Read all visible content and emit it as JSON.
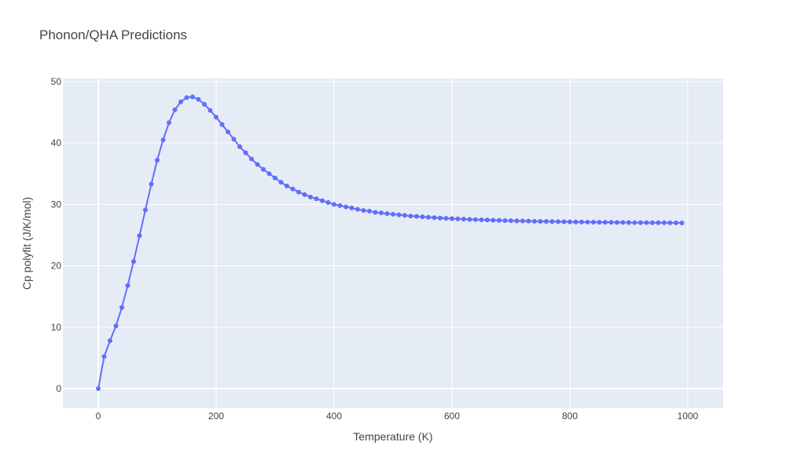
{
  "chart_data": {
    "type": "line",
    "title": "Phonon/QHA Predictions",
    "xlabel": "Temperature (K)",
    "ylabel": "Cp polyfit (J/K/mol)",
    "xlim": [
      -60,
      1060
    ],
    "ylim": [
      -3.2,
      50.5
    ],
    "x_ticks": [
      0,
      200,
      400,
      600,
      800,
      1000
    ],
    "x_tick_labels": [
      "0",
      "200",
      "400",
      "600",
      "800",
      "1000"
    ],
    "y_ticks": [
      0,
      10,
      20,
      30,
      40,
      50
    ],
    "y_tick_labels": [
      "0",
      "10",
      "20",
      "30",
      "40",
      "50"
    ],
    "grid": true,
    "legend": "none",
    "marker": "circle",
    "colors": {
      "plot_bg": "#e5ecf6",
      "grid": "#ffffff",
      "series": "#636efa",
      "text": "#444444"
    },
    "series": [
      {
        "x": [
          0,
          10,
          20,
          30,
          40,
          50,
          60,
          70,
          80,
          90,
          100,
          110,
          120,
          130,
          140,
          150,
          160,
          170,
          180,
          190,
          200,
          210,
          220,
          230,
          240,
          250,
          260,
          270,
          280,
          290,
          300,
          310,
          320,
          330,
          340,
          350,
          360,
          370,
          380,
          390,
          400,
          410,
          420,
          430,
          440,
          450,
          460,
          470,
          480,
          490,
          500,
          510,
          520,
          530,
          540,
          550,
          560,
          570,
          580,
          590,
          600,
          610,
          620,
          630,
          640,
          650,
          660,
          670,
          680,
          690,
          700,
          710,
          720,
          730,
          740,
          750,
          760,
          770,
          780,
          790,
          800,
          810,
          820,
          830,
          840,
          850,
          860,
          870,
          880,
          890,
          900,
          910,
          920,
          930,
          940,
          950,
          960,
          970,
          980,
          990
        ],
        "values": [
          0,
          5.2,
          7.8,
          10.2,
          13.2,
          16.8,
          20.7,
          24.9,
          29.1,
          33.3,
          37.2,
          40.5,
          43.3,
          45.4,
          46.7,
          47.4,
          47.5,
          47.1,
          46.3,
          45.3,
          44.2,
          43.0,
          41.8,
          40.6,
          39.4,
          38.4,
          37.4,
          36.5,
          35.7,
          35.0,
          34.3,
          33.6,
          33.0,
          32.5,
          32.0,
          31.6,
          31.2,
          30.9,
          30.6,
          30.3,
          30.0,
          29.8,
          29.6,
          29.4,
          29.2,
          29.0,
          28.9,
          28.7,
          28.6,
          28.5,
          28.4,
          28.3,
          28.2,
          28.1,
          28.05,
          27.98,
          27.9,
          27.84,
          27.78,
          27.73,
          27.68,
          27.63,
          27.59,
          27.55,
          27.51,
          27.48,
          27.45,
          27.42,
          27.39,
          27.36,
          27.34,
          27.31,
          27.29,
          27.27,
          27.25,
          27.23,
          27.21,
          27.2,
          27.18,
          27.16,
          27.15,
          27.14,
          27.12,
          27.11,
          27.1,
          27.09,
          27.08,
          27.07,
          27.06,
          27.05,
          27.04,
          27.03,
          27.02,
          27.02,
          27.01,
          27.0,
          27.0,
          26.99,
          26.99,
          26.98
        ]
      }
    ]
  }
}
